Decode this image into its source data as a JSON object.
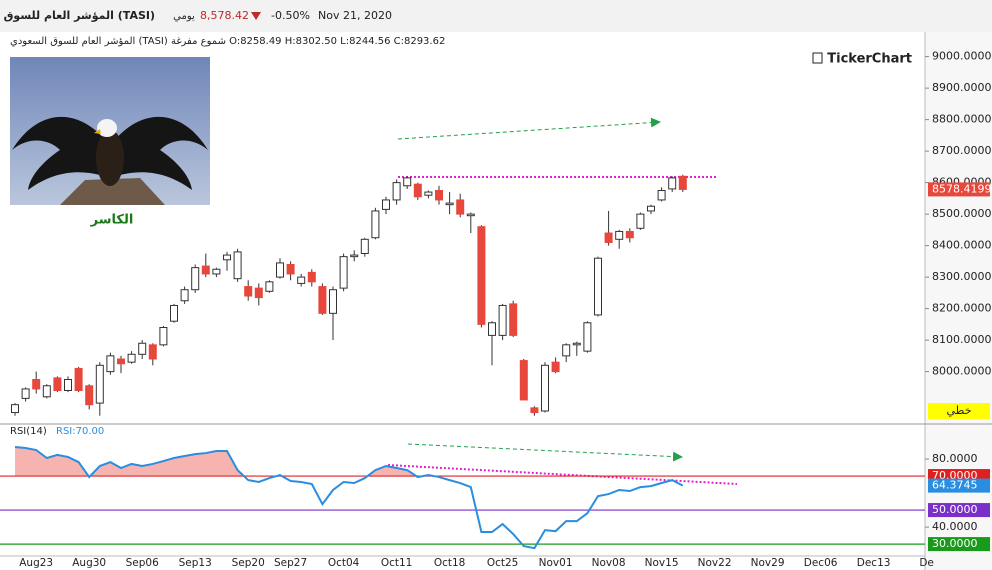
{
  "header": {
    "name": "المؤشر العام للسوق السعودي (TASI)",
    "period": "يومي",
    "price": "8,578.42",
    "change": "-0.50%",
    "date": "Nov 21, 2020",
    "legend": "المؤشر العام للسوق السعودي (TASI) شموع مفرغة O:8258.49 H:8302.50 L:8244.56 C:8293.62",
    "logo": "TickerChart",
    "image_caption": "الكاسر",
    "scale_mode": "خطي"
  },
  "chart_data": [
    {
      "type": "candlestick",
      "up_color": "#ffffff",
      "down_color": "#e8473c",
      "categories": [
        null,
        null,
        "Aug23",
        null,
        null,
        null,
        null,
        "Aug30",
        null,
        null,
        null,
        null,
        "Sep06",
        null,
        null,
        null,
        null,
        "Sep13",
        null,
        null,
        null,
        null,
        "Sep20",
        null,
        null,
        null,
        "Sep27",
        null,
        null,
        null,
        null,
        "Oct04",
        null,
        null,
        null,
        null,
        "Oct11",
        null,
        null,
        null,
        null,
        "Oct18",
        null,
        null,
        null,
        null,
        "Oct25",
        null,
        null,
        null,
        null,
        "Nov01",
        null,
        null,
        null,
        null,
        "Nov08",
        null,
        null,
        null,
        null,
        "Nov15",
        null,
        null,
        null,
        null,
        "Nov22",
        null,
        null,
        null,
        null,
        "Nov29",
        null,
        null,
        null,
        null,
        "Dec06",
        null,
        null,
        null,
        null,
        "Dec13",
        null,
        null,
        null,
        null,
        "De"
      ],
      "open": [
        7870,
        7915,
        7975,
        7920,
        7980,
        7940,
        8010,
        7955,
        7900,
        8000,
        8040,
        8030,
        8055,
        8085,
        8085,
        8160,
        8225,
        8260,
        8335,
        8310,
        8355,
        8295,
        8270,
        8265,
        8255,
        8300,
        8340,
        8280,
        8315,
        8270,
        8185,
        8265,
        8365,
        8375,
        8425,
        8515,
        8545,
        8590,
        8595,
        8560,
        8575,
        8530,
        8545,
        8495,
        8460,
        8115,
        8115,
        8215,
        8035,
        7885,
        7875,
        8030,
        8050,
        8085,
        8065,
        8180,
        8440,
        8420,
        8445,
        8455,
        8510,
        8545,
        8580,
        8620,
        null,
        null,
        null,
        null,
        null,
        null,
        null,
        null,
        null,
        null,
        null,
        null,
        null,
        null,
        null,
        null,
        null,
        null,
        null,
        null,
        null,
        null,
        null
      ],
      "high": [
        7900,
        7950,
        8000,
        7960,
        7985,
        7985,
        8015,
        7960,
        8030,
        8060,
        8050,
        8065,
        8100,
        8090,
        8145,
        8215,
        8270,
        8340,
        8375,
        8330,
        8380,
        8390,
        8290,
        8280,
        8290,
        8360,
        8350,
        8310,
        8325,
        8280,
        8270,
        8375,
        8385,
        8425,
        8520,
        8555,
        8610,
        8620,
        8600,
        8575,
        8590,
        8570,
        8565,
        8505,
        8465,
        8160,
        8215,
        8225,
        8040,
        7890,
        8030,
        8045,
        8090,
        8095,
        8160,
        8365,
        8510,
        8450,
        8455,
        8505,
        8530,
        8585,
        8620,
        8625,
        null,
        null,
        null,
        null,
        null,
        null,
        null,
        null,
        null,
        null,
        null,
        null,
        null,
        null,
        null,
        null,
        null,
        null,
        null,
        null,
        null,
        null,
        null
      ],
      "low": [
        7860,
        7905,
        7930,
        7915,
        7935,
        7935,
        7935,
        7880,
        7860,
        7990,
        7995,
        8025,
        8040,
        8020,
        8080,
        8155,
        8215,
        8250,
        8300,
        8300,
        8320,
        8285,
        8225,
        8210,
        8250,
        8295,
        8290,
        8270,
        8270,
        8180,
        8100,
        8255,
        8350,
        8365,
        8420,
        8500,
        8530,
        8580,
        8545,
        8550,
        8530,
        8500,
        8490,
        8440,
        8140,
        8020,
        8100,
        8110,
        7910,
        7860,
        7870,
        7995,
        8030,
        8050,
        8060,
        8175,
        8400,
        8390,
        8410,
        8450,
        8500,
        8540,
        8570,
        8570,
        null,
        null,
        null,
        null,
        null,
        null,
        null,
        null,
        null,
        null,
        null,
        null,
        null,
        null,
        null,
        null,
        null,
        null,
        null,
        null,
        null,
        null,
        null
      ],
      "close": [
        7895,
        7945,
        7945,
        7955,
        7940,
        7975,
        7940,
        7895,
        8020,
        8050,
        8025,
        8055,
        8090,
        8040,
        8140,
        8210,
        8260,
        8330,
        8310,
        8325,
        8370,
        8380,
        8240,
        8235,
        8285,
        8345,
        8310,
        8300,
        8285,
        8185,
        8260,
        8365,
        8370,
        8420,
        8510,
        8545,
        8600,
        8615,
        8555,
        8570,
        8545,
        8535,
        8500,
        8500,
        8150,
        8155,
        8210,
        8115,
        7910,
        7870,
        8020,
        8000,
        8085,
        8090,
        8155,
        8360,
        8410,
        8445,
        8425,
        8500,
        8525,
        8575,
        8615,
        8578.42,
        null,
        null,
        null,
        null,
        null,
        null,
        null,
        null,
        null,
        null,
        null,
        null,
        null,
        null,
        null,
        null,
        null,
        null,
        null,
        null,
        null,
        null,
        null
      ],
      "current_label": "8578.4199",
      "ylim": [
        7840,
        9075
      ],
      "yticks": [
        {
          "value": 8000,
          "label": "8000.0000"
        },
        {
          "value": 8100,
          "label": "8100.0000"
        },
        {
          "value": 8200,
          "label": "8200.0000"
        },
        {
          "value": 8300,
          "label": "8300.0000"
        },
        {
          "value": 8400,
          "label": "8400.0000"
        },
        {
          "value": 8500,
          "label": "8500.0000"
        },
        {
          "value": 8600,
          "label": "8600.0000"
        },
        {
          "value": 8700,
          "label": "8700.0000"
        },
        {
          "value": 8800,
          "label": "8800.0000"
        },
        {
          "value": 8900,
          "label": "8900.0000"
        },
        {
          "value": 9000,
          "label": "9000.0000"
        }
      ]
    },
    {
      "type": "line",
      "title": "RSI(14)",
      "subtitle": "RSI:70.00",
      "series": [
        {
          "name": "RSI",
          "color": "#2a8ee0",
          "fill_above": 70,
          "fill_color": "#f7b3b0",
          "values": [
            87.1,
            86.5,
            85.3,
            80.6,
            82.4,
            81.2,
            78.2,
            69.4,
            75.9,
            78.2,
            74.7,
            77.1,
            75.9,
            77.1,
            78.8,
            80.6,
            81.8,
            82.9,
            83.5,
            84.7,
            84.7,
            73.5,
            67.6,
            66.5,
            68.8,
            70.6,
            67.1,
            66.5,
            65.3,
            53.5,
            61.8,
            66.5,
            65.9,
            68.8,
            73.5,
            75.9,
            74.7,
            73.5,
            69.4,
            70.6,
            69.4,
            67.6,
            65.9,
            63.5,
            37.1,
            37.1,
            41.8,
            35.9,
            28.8,
            27.6,
            38.2,
            37.6,
            43.5,
            43.5,
            48.2,
            58.2,
            59.4,
            61.8,
            61.2,
            63.5,
            64.1,
            65.9,
            67.6,
            64.3745,
            null,
            null,
            null,
            null,
            null,
            null,
            null,
            null,
            null,
            null,
            null,
            null,
            null,
            null,
            null,
            null,
            null,
            null,
            null,
            null,
            null,
            null,
            null
          ]
        }
      ],
      "current_label": "64.3745",
      "ylim": [
        23,
        100
      ],
      "yticks": [
        {
          "value": 80,
          "label": "80.0000"
        },
        {
          "value": 40,
          "label": "40.0000"
        }
      ],
      "levels": [
        {
          "value": 70,
          "label": "70.0000",
          "color": "#e02020"
        },
        {
          "value": 50,
          "label": "50.0000",
          "color": "#7a2fc8"
        },
        {
          "value": 30,
          "label": "30.0000",
          "color": "#1a9a1a"
        }
      ]
    }
  ]
}
